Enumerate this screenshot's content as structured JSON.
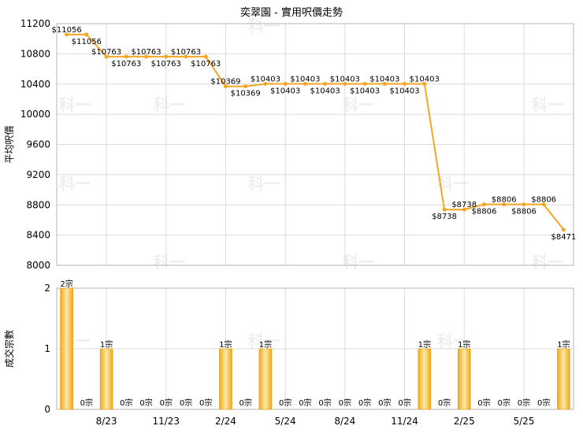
{
  "title": "奕翠園 - 實用呎價走勢",
  "watermark": "科一",
  "colors": {
    "line": "#f5a623",
    "bar_light": "#fde9a8",
    "bar_dark": "#eea81a",
    "grid": "#dcdcdc",
    "frame": "#b5b5b5"
  },
  "x_tick_labels": [
    "8/23",
    "11/23",
    "2/24",
    "5/24",
    "8/24",
    "11/24",
    "2/25",
    "5/25"
  ],
  "chart_data": [
    {
      "type": "line",
      "ylabel": "平均呎價",
      "ylim": [
        8000,
        11200
      ],
      "yticks": [
        8000,
        8400,
        8800,
        9200,
        9600,
        10000,
        10400,
        10800,
        11200
      ],
      "points": [
        {
          "x": 1,
          "y": 11056,
          "label": "$11056"
        },
        {
          "x": 2,
          "y": 11056,
          "label": "$11056"
        },
        {
          "x": 3,
          "y": 10763,
          "label": "$10763"
        },
        {
          "x": 4,
          "y": 10763,
          "label": "$10763"
        },
        {
          "x": 5,
          "y": 10763,
          "label": "$10763"
        },
        {
          "x": 6,
          "y": 10763,
          "label": "$10763"
        },
        {
          "x": 7,
          "y": 10763,
          "label": "$10763"
        },
        {
          "x": 8,
          "y": 10763,
          "label": "$10763"
        },
        {
          "x": 9,
          "y": 10369,
          "label": "$10369"
        },
        {
          "x": 10,
          "y": 10369,
          "label": "$10369"
        },
        {
          "x": 11,
          "y": 10403,
          "label": "$10403"
        },
        {
          "x": 12,
          "y": 10403,
          "label": "$10403"
        },
        {
          "x": 13,
          "y": 10403,
          "label": "$10403"
        },
        {
          "x": 14,
          "y": 10403,
          "label": "$10403"
        },
        {
          "x": 15,
          "y": 10403,
          "label": "$10403"
        },
        {
          "x": 16,
          "y": 10403,
          "label": "$10403"
        },
        {
          "x": 17,
          "y": 10403,
          "label": "$10403"
        },
        {
          "x": 18,
          "y": 10403,
          "label": "$10403"
        },
        {
          "x": 19,
          "y": 10403,
          "label": "$10403"
        },
        {
          "x": 20,
          "y": 8738,
          "label": "$8738"
        },
        {
          "x": 21,
          "y": 8738,
          "label": "$8738"
        },
        {
          "x": 22,
          "y": 8806,
          "label": "$8806"
        },
        {
          "x": 23,
          "y": 8806,
          "label": "$8806"
        },
        {
          "x": 24,
          "y": 8806,
          "label": "$8806"
        },
        {
          "x": 25,
          "y": 8806,
          "label": "$8806"
        },
        {
          "x": 26,
          "y": 8471,
          "label": "$8471"
        }
      ]
    },
    {
      "type": "bar",
      "ylabel": "成交宗數",
      "ylim": [
        0,
        2
      ],
      "yticks": [
        0,
        1,
        2
      ],
      "categories": [
        1,
        2,
        3,
        4,
        5,
        6,
        7,
        8,
        9,
        10,
        11,
        12,
        13,
        14,
        15,
        16,
        17,
        18,
        19,
        20,
        21,
        22,
        23,
        24,
        25,
        26
      ],
      "values": [
        2,
        0,
        1,
        0,
        0,
        0,
        0,
        0,
        1,
        0,
        1,
        0,
        0,
        0,
        0,
        0,
        0,
        0,
        1,
        0,
        1,
        0,
        0,
        0,
        0,
        1
      ],
      "labels": [
        "2宗",
        "0宗",
        "1宗",
        "0宗",
        "0宗",
        "0宗",
        "0宗",
        "0宗",
        "1宗",
        "0宗",
        "1宗",
        "0宗",
        "0宗",
        "0宗",
        "0宗",
        "0宗",
        "0宗",
        "0宗",
        "1宗",
        "0宗",
        "1宗",
        "0宗",
        "0宗",
        "0宗",
        "0宗",
        "1宗"
      ]
    }
  ]
}
